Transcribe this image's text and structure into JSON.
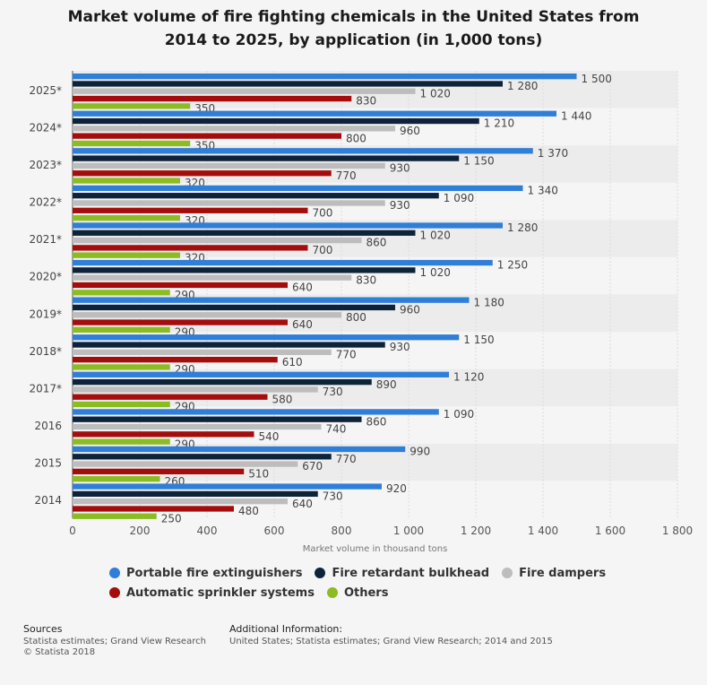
{
  "chart_data": {
    "type": "bar",
    "orientation": "horizontal",
    "title_lines": [
      "Market volume of fire fighting chemicals in the United States from",
      "2014 to 2025, by application (in 1,000 tons)"
    ],
    "xlabel": "Market volume in thousand tons",
    "ylabel": "",
    "xlim": [
      0,
      1800
    ],
    "x_ticks": [
      0,
      200,
      400,
      600,
      800,
      1000,
      1200,
      1400,
      1600,
      1800
    ],
    "x_tick_labels": [
      "0",
      "200",
      "400",
      "600",
      "800",
      "1 000",
      "1 200",
      "1 400",
      "1 600",
      "1 800"
    ],
    "grid": true,
    "legend_position": "bottom",
    "categories": [
      "2025*",
      "2024*",
      "2023*",
      "2022*",
      "2021*",
      "2020*",
      "2019*",
      "2018*",
      "2017*",
      "2016",
      "2015",
      "2014"
    ],
    "series": [
      {
        "name": "Portable fire extinguishers",
        "color": "#2f7ed8",
        "values": [
          1500,
          1440,
          1370,
          1340,
          1280,
          1250,
          1180,
          1150,
          1120,
          1090,
          990,
          920
        ],
        "labels": [
          "1 500",
          "1 440",
          "1 370",
          "1 340",
          "1 280",
          "1 250",
          "1 180",
          "1 150",
          "1 120",
          "1 090",
          "990",
          "920"
        ]
      },
      {
        "name": "Fire retardant bulkhead",
        "color": "#0d233a",
        "values": [
          1280,
          1210,
          1150,
          1090,
          1020,
          1020,
          960,
          930,
          890,
          860,
          770,
          730
        ],
        "labels": [
          "1 280",
          "1 210",
          "1 150",
          "1 090",
          "1 020",
          "1 020",
          "960",
          "930",
          "890",
          "860",
          "770",
          "730"
        ]
      },
      {
        "name": "Fire dampers",
        "color": "#bdbdbd",
        "values": [
          1020,
          960,
          930,
          930,
          860,
          830,
          800,
          770,
          730,
          740,
          670,
          640
        ],
        "labels": [
          "1 020",
          "960",
          "930",
          "930",
          "860",
          "830",
          "800",
          "770",
          "730",
          "740",
          "670",
          "640"
        ]
      },
      {
        "name": "Automatic sprinkler systems",
        "color": "#a50d0d",
        "values": [
          830,
          800,
          770,
          700,
          700,
          640,
          640,
          610,
          580,
          540,
          510,
          480
        ],
        "labels": [
          "830",
          "800",
          "770",
          "700",
          "700",
          "640",
          "640",
          "610",
          "580",
          "540",
          "510",
          "480"
        ]
      },
      {
        "name": "Others",
        "color": "#8bbc21",
        "values": [
          350,
          350,
          320,
          320,
          320,
          290,
          290,
          290,
          290,
          290,
          260,
          250
        ],
        "labels": [
          "350",
          "350",
          "320",
          "320",
          "320",
          "290",
          "290",
          "290",
          "290",
          "290",
          "260",
          "250"
        ]
      }
    ]
  },
  "footer": {
    "sources_heading": "Sources",
    "sources_line1": "Statista estimates; Grand View Research",
    "sources_line2": "© Statista 2018",
    "additional_heading": "Additional Information:",
    "additional_line1": "United States; Statista estimates; Grand View Research; 2014 and 2015"
  }
}
